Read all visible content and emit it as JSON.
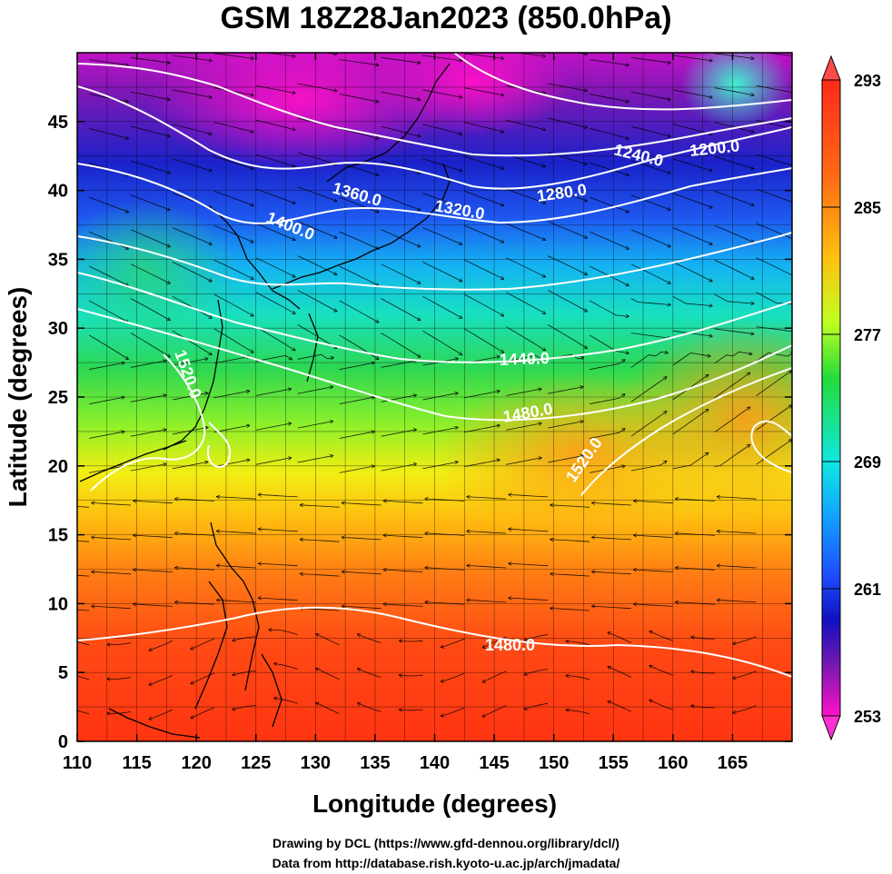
{
  "title": "GSM 18Z28Jan2023 (850.0hPa)",
  "x_axis": {
    "label": "Longitude (degrees)",
    "range": [
      110,
      170
    ],
    "ticks": [
      "110",
      "115",
      "120",
      "125",
      "130",
      "135",
      "140",
      "145",
      "150",
      "155",
      "160",
      "165"
    ]
  },
  "y_axis": {
    "label": "Latitude  (degrees)",
    "range": [
      0,
      50
    ],
    "ticks": [
      "0",
      "5",
      "10",
      "15",
      "20",
      "25",
      "30",
      "35",
      "40",
      "45"
    ]
  },
  "colorbar": {
    "labels": [
      "293",
      "285",
      "277",
      "269",
      "261",
      "253"
    ],
    "colors": [
      "#ff2a1a",
      "#ff7a10",
      "#ffd000",
      "#9eff1a",
      "#22d43a",
      "#00e6d6",
      "#0aa8ff",
      "#1f4dff",
      "#1010c0",
      "#5a1aa8",
      "#c010c8",
      "#ff10c8"
    ]
  },
  "contours": [
    {
      "label": "1200.0"
    },
    {
      "label": "1240.0"
    },
    {
      "label": "1280.0"
    },
    {
      "label": "1320.0"
    },
    {
      "label": "1360.0"
    },
    {
      "label": "1400.0"
    },
    {
      "label": "1440.0"
    },
    {
      "label": "1480.0"
    },
    {
      "label": "1520.0"
    },
    {
      "label": "1520.0"
    },
    {
      "label": "1480.0"
    }
  ],
  "credits": {
    "drawing": "Drawing by DCL (https://www.gfd-dennou.org/library/dcl/)",
    "data": "Data from http://database.rish.kyoto-u.ac.jp/arch/jmadata/"
  }
}
